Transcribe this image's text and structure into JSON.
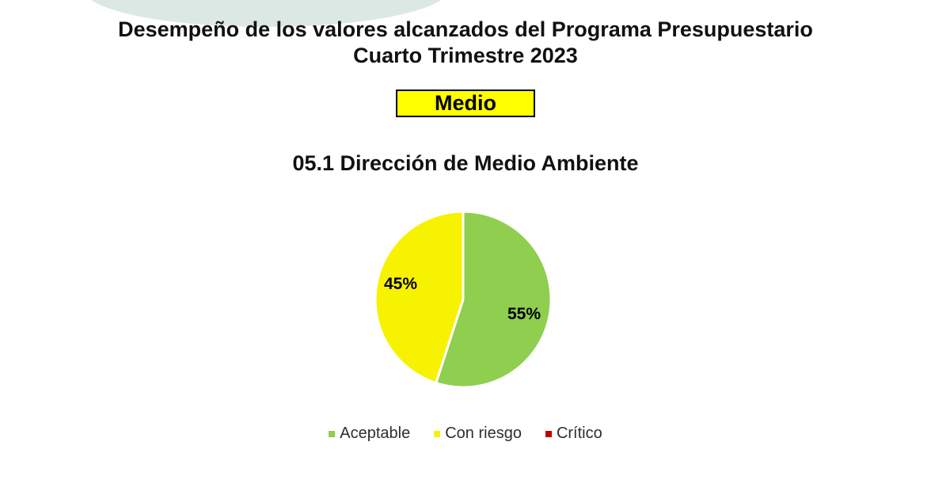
{
  "header": {
    "title_line1": "Desempeño de los valores alcanzados del Programa Presupuestario",
    "title_line2": "Cuarto Trimestre 2023",
    "status_label": "Medio"
  },
  "section": {
    "title": "05.1 Dirección de Medio Ambiente"
  },
  "colors": {
    "status_badge_bg": "#FFFF00",
    "status_badge_border": "#000000",
    "decorative_blob": "#DCE8E3",
    "aceptable_green": "#8FCE4E",
    "con_riesgo_yellow": "#F7F200",
    "critico_red": "#C00000",
    "slice_separator": "#FFFFFF"
  },
  "chart_data": {
    "type": "pie",
    "title": "05.1 Dirección de Medio Ambiente",
    "slices": [
      {
        "label": "Aceptable",
        "value": 55,
        "display": "55%",
        "color": "#8FCE4E"
      },
      {
        "label": "Con riesgo",
        "value": 45,
        "display": "45%",
        "color": "#F7F200"
      },
      {
        "label": "Crítico",
        "value": 0,
        "display": "",
        "color": "#C00000"
      }
    ],
    "start_angle_deg": 0,
    "direction": "clockwise",
    "legend_position": "bottom",
    "slice_separator_color": "#FFFFFF"
  }
}
